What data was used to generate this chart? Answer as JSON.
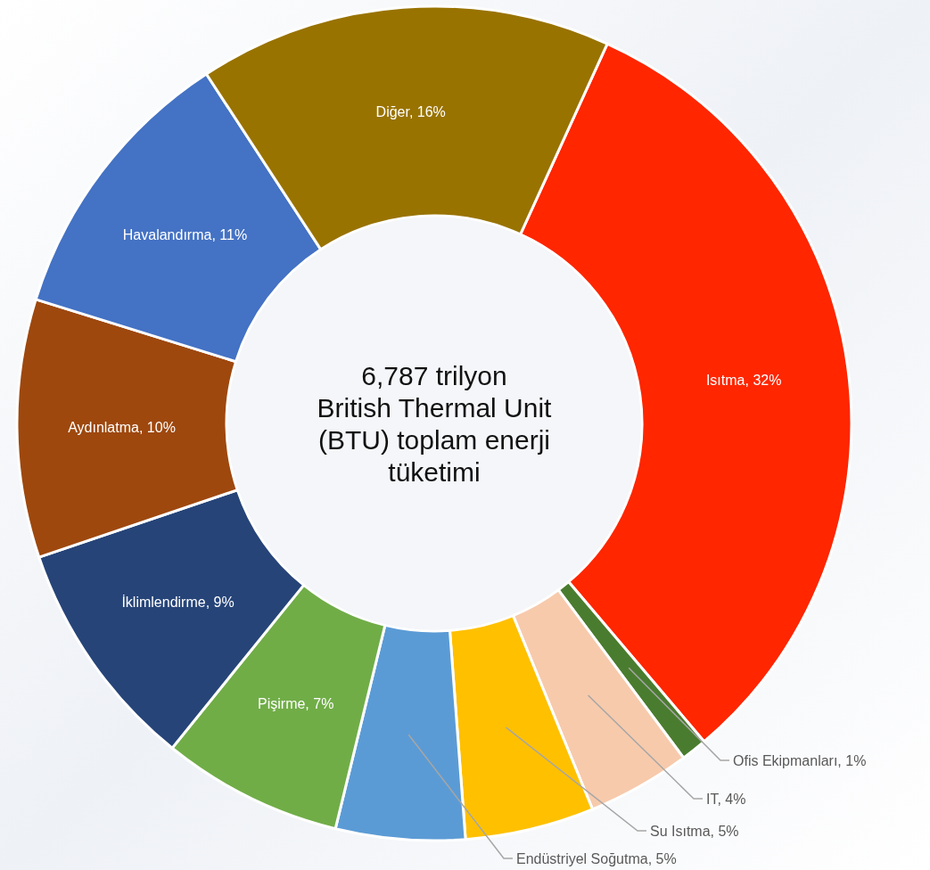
{
  "chart_data": {
    "type": "donut",
    "categories": [
      "Isıtma",
      "Ofis Ekipmanları",
      "IT",
      "Su Isıtma",
      "Endüstriyel Soğutma",
      "Pişirme",
      "İklimlendirme",
      "Aydınlatma",
      "Havalandırma",
      "Diğer"
    ],
    "values": [
      32,
      1,
      4,
      5,
      5,
      7,
      9,
      10,
      11,
      16
    ],
    "colors": [
      "#ff2600",
      "#4a7c2f",
      "#f7caac",
      "#ffc000",
      "#5b9bd5",
      "#70ad47",
      "#264478",
      "#9e480e",
      "#4472c4",
      "#997300"
    ],
    "value_labels": [
      "32%",
      "1%",
      "4%",
      "5%",
      "5%",
      "7%",
      "9%",
      "10%",
      "11%",
      "16%"
    ],
    "annotations": [
      "6,787 trilyon British Thermal Unit (BTU) toplam enerji tüketimi"
    ]
  }
}
